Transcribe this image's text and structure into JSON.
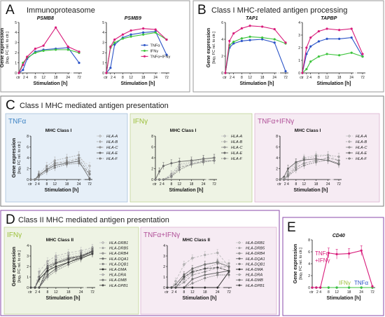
{
  "panels": [
    {
      "letter": "A",
      "title": "Immunoproteasome"
    },
    {
      "letter": "B",
      "title": "Class I MHC-related antigen processing"
    },
    {
      "letter": "C",
      "title": "Class I MHC mediated antigen presentation"
    },
    {
      "letter": "D",
      "title": "Class II MHC mediated antigen presentation"
    },
    {
      "letter": "E",
      "title": ""
    }
  ],
  "subpanels": {
    "c_tnf": "TNFα",
    "c_ifn": "IFNγ",
    "c_both": "TNFα+IFNγ",
    "d_ifn": "IFNγ",
    "d_both": "TNFα+IFNγ"
  },
  "axis": {
    "ylabel": "Gene expression",
    "ysub": "[log₂ FC rel. to ctr.]",
    "xlabel": "Stimulation [h]",
    "xticks": [
      "ctr",
      "2",
      "4",
      "8",
      "12",
      "18",
      "24",
      "72"
    ],
    "xtick_positions": [
      0,
      2,
      4,
      8,
      12,
      18,
      24,
      72
    ]
  },
  "colors": {
    "tnf": "#2a53c7",
    "ifn": "#3cc43c",
    "both": "#d81b7a",
    "frameA": "#9a9a9a",
    "frameC": "#7a7a7a",
    "frameD": "#8a4aa8",
    "bgTnf": "#e6eff8",
    "bgIfn": "#eef3e4",
    "bgBoth": "#f6ebf3",
    "c_tnf": "#3d83c4",
    "c_ifn": "#9bbf3a",
    "c_both": "#b05098"
  },
  "legend_stim": [
    "TNFα",
    "IFNγ",
    "TNFα+IFNγ"
  ],
  "genes_class1": [
    "HLA-A",
    "HLA-B",
    "HLA-C",
    "HLA-E",
    "HLA-F"
  ],
  "genes_class2": [
    "HLA-DRB1",
    "HLA-DRB5",
    "HLA-DRB4",
    "HLA-DQA1",
    "HLA-DQB1",
    "HLA-DMA",
    "HLA-DRA",
    "HLA-DMB",
    "HLA-DPB1"
  ],
  "e_labels": {
    "both": "TNFα\n+IFNγ",
    "ifn": "IFNγ",
    "tnf": "TNFα"
  },
  "chart_data": [
    {
      "id": "PSMB8",
      "type": "line",
      "title": "PSMB8",
      "ylim": [
        0,
        5
      ],
      "yticks": [
        0,
        1,
        2,
        3,
        4,
        5
      ],
      "x": [
        0,
        2,
        4,
        8,
        12,
        18,
        24,
        72
      ],
      "series": [
        {
          "name": "TNFα",
          "color": "tnf",
          "values": [
            0,
            0.3,
            1.4,
            2.1,
            2.3,
            2.4,
            2.5,
            1.0
          ]
        },
        {
          "name": "IFNγ",
          "color": "ifn",
          "values": [
            0,
            1.0,
            1.5,
            2.0,
            2.2,
            2.3,
            2.3,
            2.0
          ]
        },
        {
          "name": "TNFα+IFNγ",
          "color": "both",
          "values": [
            0,
            0.8,
            1.6,
            2.4,
            2.7,
            4.5,
            2.6,
            2.1
          ]
        }
      ]
    },
    {
      "id": "PSMB9",
      "type": "line",
      "title": "PSMB9",
      "ylim": [
        0,
        5
      ],
      "yticks": [
        0,
        1,
        2,
        3,
        4,
        5
      ],
      "x": [
        0,
        2,
        4,
        8,
        12,
        18,
        24,
        72
      ],
      "series": [
        {
          "name": "TNFα",
          "color": "tnf",
          "values": [
            0,
            0.5,
            2.8,
            3.5,
            3.8,
            4.0,
            4.1,
            1.8
          ]
        },
        {
          "name": "IFNγ",
          "color": "ifn",
          "values": [
            0,
            2.5,
            3.0,
            3.4,
            3.6,
            3.8,
            4.0,
            3.3
          ]
        },
        {
          "name": "TNFα+IFNγ",
          "color": "both",
          "values": [
            0,
            2.6,
            3.3,
            3.8,
            4.2,
            4.4,
            4.3,
            3.3
          ]
        }
      ]
    },
    {
      "id": "TAP1",
      "type": "line",
      "title": "TAP1",
      "ylim": [
        0,
        6
      ],
      "yticks": [
        0,
        2,
        4,
        6
      ],
      "x": [
        0,
        2,
        4,
        8,
        12,
        18,
        24,
        72
      ],
      "series": [
        {
          "name": "TNFα",
          "color": "tnf",
          "values": [
            0,
            3.0,
            3.5,
            3.8,
            3.9,
            4.0,
            3.6,
            0.2
          ]
        },
        {
          "name": "IFNγ",
          "color": "ifn",
          "values": [
            0,
            3.3,
            3.7,
            4.1,
            4.3,
            4.2,
            4.0,
            3.5
          ]
        },
        {
          "name": "TNFα+IFNγ",
          "color": "both",
          "values": [
            0,
            3.8,
            4.7,
            5.3,
            5.6,
            5.5,
            5.2,
            3.6
          ]
        }
      ]
    },
    {
      "id": "TAPBP",
      "type": "line",
      "title": "TAPBP",
      "ylim": [
        0,
        4
      ],
      "yticks": [
        0,
        1,
        2,
        3,
        4
      ],
      "x": [
        0,
        2,
        4,
        8,
        12,
        18,
        24,
        72
      ],
      "series": [
        {
          "name": "TNFα",
          "color": "tnf",
          "values": [
            0,
            1.5,
            2.1,
            2.5,
            2.7,
            2.7,
            2.8,
            1.3
          ]
        },
        {
          "name": "IFNγ",
          "color": "ifn",
          "values": [
            0,
            0.3,
            0.9,
            1.3,
            1.5,
            1.4,
            1.6,
            1.3
          ]
        },
        {
          "name": "TNFα+IFNγ",
          "color": "both",
          "values": [
            0,
            2.0,
            2.8,
            3.3,
            3.5,
            3.4,
            3.5,
            1.5
          ]
        }
      ]
    },
    {
      "id": "C_TNF",
      "type": "line",
      "title": "MHC Class I",
      "ylim": [
        0,
        8
      ],
      "yticks": [
        0,
        2,
        4,
        6,
        8
      ],
      "x": [
        0,
        2,
        4,
        8,
        12,
        18,
        24,
        72
      ],
      "series": [
        {
          "name": "HLA-A",
          "values": [
            0,
            0,
            0.8,
            2.0,
            3.0,
            3.5,
            4.0,
            2.5
          ]
        },
        {
          "name": "HLA-B",
          "values": [
            0,
            0,
            1.0,
            2.5,
            3.5,
            4.0,
            4.5,
            1.5
          ]
        },
        {
          "name": "HLA-C",
          "values": [
            0,
            0,
            0.6,
            2.0,
            3.0,
            3.2,
            3.8,
            1.0
          ]
        },
        {
          "name": "HLA-E",
          "values": [
            0,
            0,
            0.8,
            1.8,
            2.6,
            3.0,
            3.4,
            0.2
          ]
        },
        {
          "name": "HLA-F",
          "values": [
            0,
            0,
            0.5,
            1.5,
            2.2,
            2.8,
            3.0,
            1.0
          ]
        }
      ]
    },
    {
      "id": "C_IFN",
      "type": "line",
      "title": "MHC Class I",
      "ylim": [
        0,
        8
      ],
      "yticks": [
        0,
        2,
        4,
        6,
        8
      ],
      "x": [
        0,
        2,
        4,
        8,
        12,
        18,
        24,
        72
      ],
      "series": [
        {
          "name": "HLA-A",
          "values": [
            0,
            0,
            0,
            0.8,
            2.5,
            3.0,
            3.5,
            3.5
          ]
        },
        {
          "name": "HLA-B",
          "values": [
            0,
            0,
            0,
            1.0,
            2.8,
            3.2,
            3.8,
            4.0
          ]
        },
        {
          "name": "HLA-C",
          "values": [
            0,
            0,
            0,
            0.6,
            2.2,
            2.8,
            3.4,
            3.5
          ]
        },
        {
          "name": "HLA-E",
          "values": [
            0,
            1.5,
            2.5,
            3.0,
            3.3,
            3.5,
            3.8,
            4.0
          ]
        },
        {
          "name": "HLA-F",
          "values": [
            0,
            0,
            0,
            0.5,
            1.8,
            2.8,
            3.2,
            3.5
          ]
        }
      ]
    },
    {
      "id": "C_BOTH",
      "type": "line",
      "title": "MHC Class I",
      "ylim": [
        0,
        8
      ],
      "yticks": [
        0,
        2,
        4,
        6,
        8
      ],
      "x": [
        0,
        2,
        4,
        8,
        12,
        18,
        24,
        72
      ],
      "series": [
        {
          "name": "HLA-A",
          "values": [
            0,
            0,
            1.5,
            3.0,
            4.0,
            4.5,
            4.5,
            3.5
          ]
        },
        {
          "name": "HLA-B",
          "values": [
            0,
            0,
            1.0,
            2.6,
            3.8,
            4.2,
            4.5,
            4.2
          ]
        },
        {
          "name": "HLA-C",
          "values": [
            0,
            0,
            0.8,
            2.2,
            3.0,
            3.5,
            4.0,
            3.5
          ]
        },
        {
          "name": "HLA-E",
          "values": [
            0,
            0.5,
            2.0,
            3.2,
            3.6,
            3.8,
            3.5,
            2.8
          ]
        },
        {
          "name": "HLA-F",
          "values": [
            0,
            0,
            0.6,
            1.8,
            2.6,
            3.2,
            3.6,
            3.0
          ]
        }
      ]
    },
    {
      "id": "D_IFN",
      "type": "line",
      "title": "MHC Class II",
      "ylim": [
        0,
        4
      ],
      "yticks": [
        0,
        1,
        2,
        3,
        4
      ],
      "x": [
        0,
        2,
        4,
        8,
        12,
        18,
        24,
        72
      ],
      "series": [
        {
          "name": "HLA-DRB1",
          "values": [
            0,
            0,
            0,
            2.2,
            2.8,
            3.1,
            3.3,
            3.7
          ]
        },
        {
          "name": "HLA-DRB5",
          "values": [
            0,
            0,
            0,
            2.0,
            2.6,
            2.9,
            3.1,
            3.6
          ]
        },
        {
          "name": "HLA-DRB4",
          "values": [
            0,
            0,
            0,
            1.5,
            2.3,
            2.6,
            2.9,
            3.5
          ]
        },
        {
          "name": "HLA-DQA1",
          "values": [
            0,
            0,
            0,
            1.2,
            1.8,
            2.4,
            2.9,
            3.4
          ]
        },
        {
          "name": "HLA-DQB1",
          "values": [
            0,
            0,
            0,
            1.0,
            1.6,
            2.2,
            2.7,
            3.3
          ]
        },
        {
          "name": "HLA-DMA",
          "values": [
            0,
            0,
            0.8,
            1.6,
            2.0,
            2.4,
            2.8,
            3.2
          ]
        },
        {
          "name": "HLA-DRA",
          "values": [
            0,
            0,
            1.5,
            2.5,
            3.0,
            3.3,
            3.5,
            3.8
          ]
        },
        {
          "name": "HLA-DMB",
          "values": [
            0,
            0,
            1.0,
            2.0,
            2.4,
            2.8,
            3.0,
            3.5
          ]
        },
        {
          "name": "HLA-DPB1",
          "values": [
            0,
            0,
            0,
            1.8,
            2.3,
            2.7,
            3.0,
            3.4
          ]
        }
      ]
    },
    {
      "id": "D_BOTH",
      "type": "line",
      "title": "MHC Class II",
      "ylim": [
        0,
        4
      ],
      "yticks": [
        0,
        1,
        2,
        3,
        4
      ],
      "x": [
        0,
        2,
        4,
        8,
        12,
        18,
        24,
        72
      ],
      "series": [
        {
          "name": "HLA-DRB1",
          "values": [
            0,
            0,
            0,
            1.0,
            1.6,
            2.2,
            2.5,
            2.3
          ]
        },
        {
          "name": "HLA-DRB5",
          "values": [
            0,
            0,
            0,
            0.8,
            1.4,
            1.8,
            2.3,
            2.0
          ]
        },
        {
          "name": "HLA-DRB4",
          "values": [
            0,
            0,
            0,
            0.5,
            1.2,
            1.5,
            1.9,
            2.0
          ]
        },
        {
          "name": "HLA-DQA1",
          "values": [
            0,
            0,
            0,
            0,
            0.8,
            1.2,
            1.4,
            1.6
          ]
        },
        {
          "name": "HLA-DQB1",
          "values": [
            0,
            0,
            0,
            0,
            0.4,
            0.9,
            1.2,
            1.2
          ]
        },
        {
          "name": "HLA-DMA",
          "values": [
            0,
            0,
            0,
            0,
            0,
            0,
            0,
            1.5
          ]
        },
        {
          "name": "HLA-DRA",
          "values": [
            0,
            0,
            0.6,
            2.2,
            2.8,
            3.1,
            3.3,
            2.0
          ]
        },
        {
          "name": "HLA-DMB",
          "values": [
            0,
            0,
            0.3,
            1.2,
            1.8,
            2.2,
            2.4,
            2.0
          ]
        },
        {
          "name": "HLA-DPB1",
          "values": [
            0,
            0,
            0,
            1.0,
            1.5,
            1.8,
            1.9,
            1.6
          ]
        }
      ]
    },
    {
      "id": "CD40",
      "type": "line",
      "title": "CD40",
      "ylim": [
        0,
        8
      ],
      "yticks": [
        0,
        2,
        4,
        6,
        8
      ],
      "x": [
        0,
        2,
        4,
        8,
        12,
        18,
        24,
        72
      ],
      "series": [
        {
          "name": "TNFα",
          "color": "tnf",
          "values": [
            0,
            0,
            0,
            0,
            0,
            0,
            0,
            0
          ]
        },
        {
          "name": "IFNγ",
          "color": "ifn",
          "values": [
            0,
            0,
            0,
            0,
            0,
            0,
            0,
            0
          ]
        },
        {
          "name": "TNFα+IFNγ",
          "color": "both",
          "values": [
            0,
            0,
            0,
            5.8,
            5.6,
            5.7,
            6.2,
            0.2
          ]
        }
      ]
    }
  ]
}
